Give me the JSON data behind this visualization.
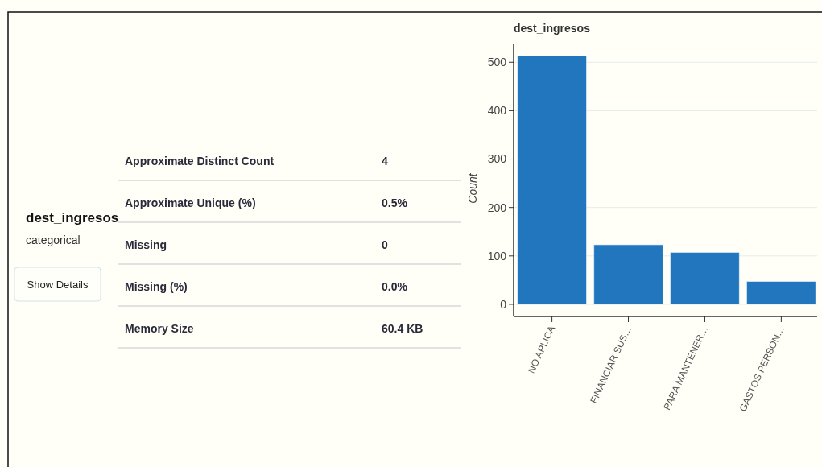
{
  "chart_data": [
    {
      "type": "other",
      "title": "dest_ingresos",
      "subtitle": "categorical",
      "annotations": [
        "Show Details",
        "Approximate Distinct Count",
        "4",
        "Approximate Unique (%)",
        "0.5%",
        "Missing",
        "0",
        "Missing (%)",
        "0.0%",
        "Memory Size",
        "60.4 KB"
      ]
    },
    {
      "type": "bar",
      "title": "dest_ingresos",
      "ylabel": "Count",
      "categories": [
        "NO APLICA",
        "FINANCIAR SUS…",
        "PARA MANTENER…",
        "GASTOS PERSON…"
      ],
      "values": [
        513,
        123,
        107,
        47
      ],
      "color": "#2176bd",
      "ylim": [
        -25,
        537
      ],
      "yticks": [
        0,
        100,
        200,
        300,
        400,
        500
      ],
      "grid": "y"
    }
  ]
}
